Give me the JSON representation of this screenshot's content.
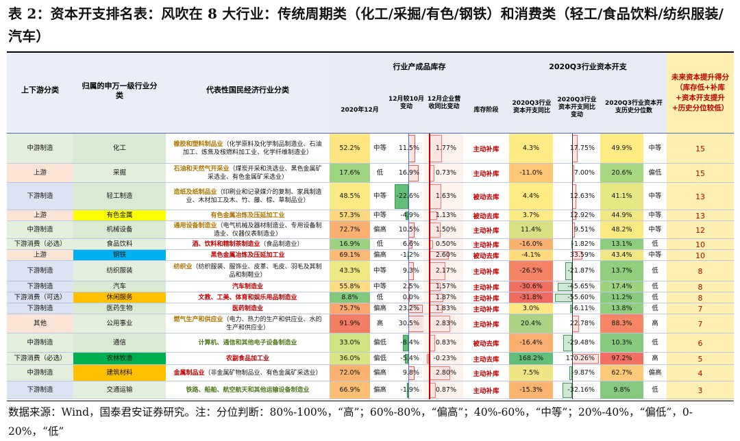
{
  "title": "表 2：资本开支排名表：风吹在 8 大行业：传统周期类（化工/采掘/有色/钢铁）和消费类（轻工/食品饮料/纺织服装/汽车）",
  "headers": {
    "stream": "上下游分类",
    "sw": "归属的申万一级行业分类",
    "nat": "代表性国民经济行业分类",
    "inv_group": "行业产成品库存",
    "inv_2020": "2020年12月",
    "inv_chg": "12月较10月变动",
    "rev": "12月企业营收同比变动",
    "stage": "库存阶段",
    "capex_group": "2020Q3行业资本开支",
    "capex_yoy": "2020Q3行业资本开支同比",
    "capex_chg": "2020Q3行业资本开支同比变动",
    "capex_pct": "2020Q3行业资本开支历史分位数",
    "score": "未来资本提升得分（库存低+补库+资本开支提升+历史分位较低）"
  },
  "colors": {
    "grid_blue": "#4f6fc0",
    "score_bg": "#ffefb0",
    "red": "#c00000"
  },
  "rows": [
    {
      "stream": "中游制造",
      "sw": "化工",
      "nat_head": "橡胶和塑料制品业",
      "nat_rest": "（化学原料及化学制品制造业、石油加工、炼焦及核燃料加工业、化学纤维制造业）",
      "inv": "52.2%",
      "inv_level": "中等",
      "chg": "11.5%",
      "chg_v": 11.5,
      "rev": "1.77%",
      "rev_v": 1.77,
      "stage": "主动补库",
      "capex": "4.3%",
      "capex_v": 4.3,
      "cchg": "17.75%",
      "cchg_v": 17.75,
      "pct": "49.9%",
      "pct_level": "中等",
      "score": "15"
    },
    {
      "stream": "上游",
      "sw": "采掘",
      "nat_head": "石油和天然气开采业",
      "nat_rest": "（煤炭开采和洗选业、黑色金属矿采选业、有色金属矿采选业）",
      "inv": "17.6%",
      "inv_level": "低",
      "chg": "16.9%",
      "chg_v": 16.9,
      "rev": "0.73%",
      "rev_v": 0.73,
      "stage": "主动补库",
      "capex": "-11.0%",
      "capex_v": -11.0,
      "cchg": "7.00%",
      "cchg_v": 7.0,
      "pct": "20.6%",
      "pct_level": "偏低",
      "score": "15"
    },
    {
      "stream": "下游制造",
      "sw": "轻工制造",
      "nat_head": "造纸及纸制品业",
      "nat_rest": "（印刷业和记录媒介的复制、家具制造业、木材加工及木、竹、藤、棕、草制品业）",
      "inv": "48.5%",
      "inv_level": "中等",
      "chg": "-22.6%",
      "chg_v": -22.6,
      "rev": "1.63%",
      "rev_v": 1.63,
      "stage": "被动去库",
      "capex": "4.4%",
      "capex_v": 4.4,
      "cchg": "12.63%",
      "cchg_v": 12.63,
      "pct": "41.1%",
      "pct_level": "中等",
      "score": "13"
    },
    {
      "stream": "上游",
      "sw": "有色金属",
      "nat_head": "有色金属冶炼及压延加工业",
      "nat_rest": "",
      "inv": "57.3%",
      "inv_level": "中等",
      "chg": "-4.9%",
      "chg_v": -4.9,
      "rev": "1.13%",
      "rev_v": 1.13,
      "stage": "被动去库",
      "capex": "3.7%",
      "capex_v": 3.7,
      "cchg": "12.92%",
      "cchg_v": 12.92,
      "pct": "44.9%",
      "pct_level": "中等",
      "score": "13"
    },
    {
      "stream": "中游制造",
      "sw": "机械设备",
      "nat_head": "通用设备制造业",
      "nat_rest": "（电气机械及器材制造业、专用设备制造业、仪器仪表制造业）",
      "inv": "72.7%",
      "inv_level": "偏高",
      "chg": "10.5%",
      "chg_v": 10.5,
      "rev": "1.50%",
      "rev_v": 1.5,
      "stage": "主动补库",
      "capex": "11.4%",
      "capex_v": 11.4,
      "cchg": "9.51%",
      "cchg_v": 9.51,
      "pct": "48.2%",
      "pct_level": "中等",
      "score": "12"
    },
    {
      "stream": "下游消费（必选）",
      "sw": "食品饮料",
      "nat_head": "酒、饮料和精制茶制造业",
      "nat_rest": "（食品制造业）",
      "inv": "16.9%",
      "inv_level": "低",
      "chg": "6.6%",
      "chg_v": 6.6,
      "rev": "0.50%",
      "rev_v": 0.5,
      "stage": "主动补库",
      "capex": "-16.0%",
      "capex_v": -16.0,
      "cchg": "-1.82%",
      "cchg_v": -1.82,
      "pct": "13.1%",
      "pct_level": "低",
      "score": "10"
    },
    {
      "stream": "上游",
      "sw": "钢铁",
      "nat_head": "黑色金属冶炼及压延加工业",
      "nat_rest": "",
      "inv": "69.1%",
      "inv_level": "偏高",
      "chg": "-1.2%",
      "chg_v": -1.2,
      "rev": "2.60%",
      "rev_v": 2.6,
      "stage": "被动去库",
      "capex": "-4.1%",
      "capex_v": -4.1,
      "cchg": "33.59%",
      "cchg_v": 33.59,
      "pct": "43.4%",
      "pct_level": "中等",
      "score": "10"
    },
    {
      "stream": "下游制造",
      "sw": "纺织服装",
      "nat_head": "纺织业",
      "nat_rest": "（纺织服装、服饰业、皮革、毛皮、羽毛及其制品和制鞋业）",
      "inv": "43.3%",
      "inv_level": "中等",
      "chg": "9.3%",
      "chg_v": 9.3,
      "rev": "2.17%",
      "rev_v": 2.17,
      "stage": "主动补库",
      "capex": "-26.5%",
      "capex_v": -26.5,
      "cchg": "-21.87%",
      "cchg_v": -21.87,
      "pct": "13.7%",
      "pct_level": "低",
      "score": "8"
    },
    {
      "stream": "下游制造",
      "sw": "汽车",
      "nat_head": "汽车制造业",
      "nat_rest": "",
      "inv": "55.8%",
      "inv_level": "中等",
      "chg": "2.5%",
      "chg_v": 2.5,
      "rev": "1.57%",
      "rev_v": 1.57,
      "stage": "主动补库",
      "capex": "-30.6%",
      "capex_v": -30.6,
      "cchg": "-45.65%",
      "cchg_v": -45.65,
      "pct": "17.4%",
      "pct_level": "低",
      "score": "8"
    },
    {
      "stream": "下游消费（可选）",
      "sw": "休闲服务",
      "nat_head": "文教、工美、体育和娱乐用品制造业",
      "nat_rest": "",
      "inv": "8.8%",
      "inv_level": "低",
      "chg": "0.0%",
      "chg_v": 0.0,
      "rev": "1.87%",
      "rev_v": 1.87,
      "stage": "主动补库",
      "capex": "-31.8%",
      "capex_v": -31.8,
      "cchg": "-55.60%",
      "cchg_v": -55.6,
      "pct": "11.2%",
      "pct_level": "低",
      "score": "8"
    },
    {
      "stream": "下游制造",
      "sw": "医药生物",
      "nat_head": "医药制造业",
      "nat_rest": "",
      "inv": "75.7%",
      "inv_level": "偏高",
      "chg": "23.2%",
      "chg_v": 23.2,
      "rev": "1.83%",
      "rev_v": 1.83,
      "stage": "主动补库",
      "capex": "3.0%",
      "capex_v": 3.0,
      "cchg": "-6.11%",
      "cchg_v": -6.11,
      "pct": "13.8%",
      "pct_level": "低",
      "score": "7"
    },
    {
      "stream": "其他",
      "sw": "公用事业",
      "nat_head": "燃气生产和供应业",
      "nat_rest": "（电力、热力的生产和供应业、水的生产和供应业）",
      "inv": "91.9%",
      "inv_level": "高",
      "chg": "30.5%",
      "chg_v": 30.5,
      "rev": "2.83%",
      "rev_v": 2.83,
      "stage": "主动补库",
      "capex": "20.4%",
      "capex_v": 20.4,
      "cchg": "22.78%",
      "cchg_v": 22.78,
      "pct": "88.3%",
      "pct_level": "高",
      "score": "7"
    },
    {
      "stream": "中游制造",
      "sw": "通信",
      "nat_head": "计算机、通信和其他电子设备制造业",
      "nat_rest": "",
      "inv": "33.0%",
      "inv_level": "偏低",
      "chg": "-8.4%",
      "chg_v": -8.4,
      "rev": "0.83%",
      "rev_v": 0.83,
      "stage": "被动去库",
      "capex": "-16.4%",
      "capex_v": -16.4,
      "cchg": "-29.48%",
      "cchg_v": -29.48,
      "pct": "10.3%",
      "pct_level": "低",
      "score": "6"
    },
    {
      "stream": "下游消费（必选）",
      "sw": "农林牧渔",
      "nat_head": "农副食品加工业",
      "nat_rest": "",
      "inv": "36.0%",
      "inv_level": "偏低",
      "chg": "-5.4%",
      "chg_v": -5.4,
      "rev": "-0.23%",
      "rev_v": -0.23,
      "stage": "主动去库",
      "capex": "168.2%",
      "capex_v": 168.2,
      "cchg": "170.26%",
      "cchg_v": 170.26,
      "pct": "97.2%",
      "pct_level": "高",
      "score": "5"
    },
    {
      "stream": "中游制造",
      "sw": "建筑材料",
      "nat_head": "金属制品业",
      "nat_rest": "（非金属矿物制品业、有色金属矿采选业）",
      "inv": "72.0%",
      "inv_level": "偏高",
      "chg": "9.8%",
      "chg_v": 9.8,
      "rev": "2.80%",
      "rev_v": 2.8,
      "stage": "主动补库",
      "capex": "7.5%",
      "capex_v": 7.5,
      "cchg": "-9.87%",
      "cchg_v": -9.87,
      "pct": "62.7%",
      "pct_level": "偏高",
      "score": "4"
    },
    {
      "stream": "下游制造",
      "sw": "交通运输",
      "nat_head": "铁路、船舶、航空航天和其他运输设备制造业",
      "nat_rest": "",
      "inv": "66.9%",
      "inv_level": "偏高",
      "chg": "-1.9%",
      "chg_v": -1.9,
      "rev": "0.87%",
      "rev_v": 0.87,
      "stage": "主动补库",
      "capex": "-15.3%",
      "capex_v": -15.3,
      "cchg": "-32.16%",
      "cchg_v": -32.16,
      "pct": "9.8%",
      "pct_level": "低",
      "score": "3"
    }
  ],
  "note": "数据来源：Wind，国泰君安证券研究。注：分位判断：80%-100%，“高”；60%-80%，“偏高”；40%-60%，“中等”；20%-40%，“偏低”，0-20%，“低”"
}
